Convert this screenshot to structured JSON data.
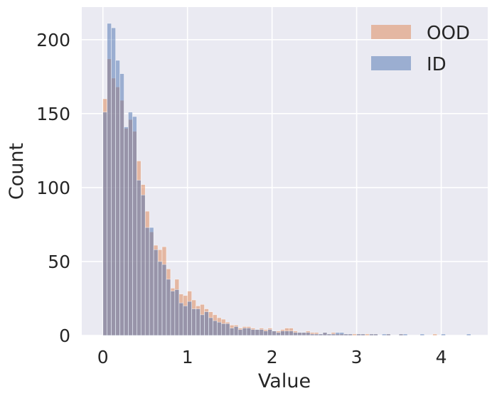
{
  "chart_data": {
    "type": "histogram",
    "title": "",
    "xlabel": "Value",
    "ylabel": "Count",
    "xlim": [
      -0.25,
      4.55
    ],
    "ylim": [
      0,
      222
    ],
    "x_ticks": [
      0,
      1,
      2,
      3,
      4
    ],
    "y_ticks": [
      0,
      50,
      100,
      150,
      200
    ],
    "grid": true,
    "legend_position": "top-right",
    "bin_width": 0.05,
    "x_start": 0.0,
    "series": [
      {
        "name": "OOD",
        "color": "#dd8452",
        "values": [
          160,
          187,
          174,
          168,
          159,
          140,
          146,
          138,
          118,
          102,
          84,
          70,
          61,
          58,
          60,
          45,
          32,
          38,
          28,
          27,
          30,
          24,
          20,
          21,
          18,
          16,
          14,
          12,
          11,
          9,
          7,
          7,
          5,
          6,
          6,
          5,
          4,
          5,
          4,
          5,
          3,
          3,
          4,
          5,
          5,
          3,
          2,
          2,
          3,
          2,
          2,
          1,
          2,
          1,
          2,
          1,
          1,
          1,
          1,
          1,
          1,
          1,
          1,
          1,
          1,
          0,
          0,
          1,
          0,
          0,
          1,
          0,
          0,
          0,
          0,
          0,
          0,
          0,
          1,
          0,
          0,
          0,
          0,
          0,
          0,
          0,
          0
        ]
      },
      {
        "name": "ID",
        "color": "#4c72b0",
        "values": [
          151,
          211,
          208,
          186,
          177,
          141,
          151,
          148,
          105,
          95,
          73,
          73,
          58,
          50,
          48,
          38,
          30,
          31,
          22,
          20,
          23,
          18,
          18,
          14,
          16,
          12,
          10,
          9,
          8,
          8,
          5,
          6,
          4,
          5,
          5,
          4,
          4,
          4,
          3,
          4,
          3,
          2,
          3,
          3,
          3,
          2,
          2,
          2,
          2,
          1,
          1,
          1,
          2,
          1,
          1,
          2,
          2,
          1,
          1,
          0,
          1,
          1,
          0,
          1,
          1,
          0,
          1,
          1,
          0,
          0,
          1,
          1,
          0,
          0,
          0,
          1,
          0,
          0,
          0,
          0,
          1,
          0,
          0,
          0,
          0,
          0,
          1
        ]
      }
    ]
  }
}
